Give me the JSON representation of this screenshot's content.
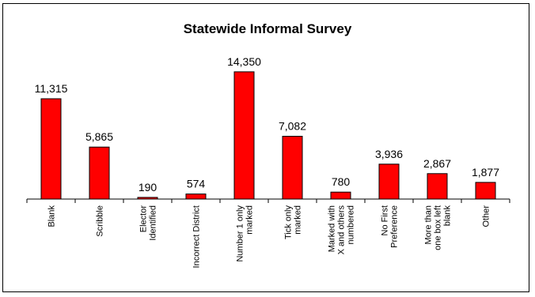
{
  "chart_data": {
    "type": "bar",
    "title": "Statewide Informal Survey",
    "xlabel": "",
    "ylabel": "",
    "ylim": [
      0,
      15500
    ],
    "grid": false,
    "legend": "none",
    "bar_color": "#ff0000",
    "bar_outline": "#000000",
    "categories": [
      [
        "Blank"
      ],
      [
        "Scribble"
      ],
      [
        "Elector",
        "Identified"
      ],
      [
        "Incorrect District"
      ],
      [
        "Number 1 only",
        "marked"
      ],
      [
        "Tick only",
        "marked"
      ],
      [
        "Marked with",
        "X and others",
        "numbered"
      ],
      [
        "No First",
        "Preference"
      ],
      [
        "More than",
        "one box left",
        "blank"
      ],
      [
        "Other"
      ]
    ],
    "values": [
      11315,
      5865,
      190,
      574,
      14350,
      7082,
      780,
      3936,
      2867,
      1877
    ],
    "data_labels": [
      "11,315",
      "5,865",
      "190",
      "574",
      "14,350",
      "7,082",
      "780",
      "3,936",
      "2,867",
      "1,877"
    ]
  }
}
